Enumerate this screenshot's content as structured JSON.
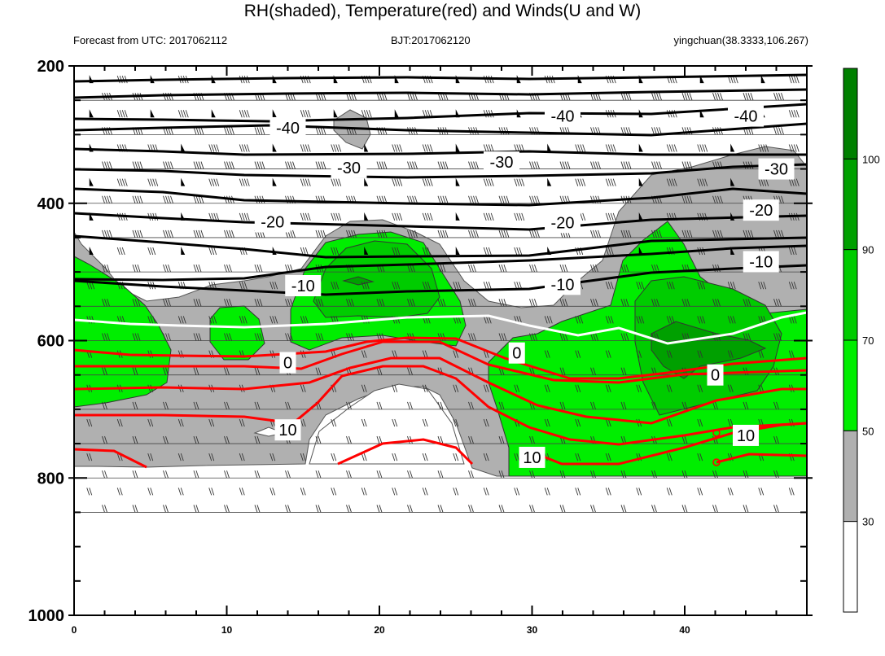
{
  "title": "RH(shaded), Temperature(red) and Winds(U and W)",
  "subtitle_left": "Forecast from UTC: 2017062112",
  "subtitle_center": "BJT:2017062120",
  "subtitle_right": "yingchuan(38.3333,106.267)",
  "colors": {
    "rh_30_50": "#b0b0b0",
    "rh_50_70": "#00ee00",
    "rh_70_90": "#00cc00",
    "rh_90_100": "#00a000",
    "rh_100": "#008000",
    "temp_positive": "#ff0000",
    "temp_zero": "#ffffff",
    "temp_negative": "#000000"
  },
  "chart_data": {
    "type": "heatmap",
    "title": "RH(shaded), Temperature(red) and Winds(U and W)",
    "x_ticks": [
      0,
      10,
      20,
      30,
      40
    ],
    "y_ticks": [
      200,
      400,
      600,
      800,
      1000
    ],
    "x_range": [
      0,
      48
    ],
    "y_range": [
      200,
      1000
    ],
    "y_reversed": true,
    "colorbar": {
      "levels": [
        30,
        50,
        70,
        90,
        100
      ],
      "colors": [
        "#ffffff",
        "#b0b0b0",
        "#00ee00",
        "#00cc00",
        "#00a000",
        "#008000"
      ]
    },
    "temperature_contour_labels": [
      {
        "value": "-40",
        "x": 14,
        "p": 290
      },
      {
        "value": "-40",
        "x": 32,
        "p": 273
      },
      {
        "value": "-40",
        "x": 44,
        "p": 273
      },
      {
        "value": "-30",
        "x": 18,
        "p": 348
      },
      {
        "value": "-30",
        "x": 28,
        "p": 340
      },
      {
        "value": "-30",
        "x": 46,
        "p": 350
      },
      {
        "value": "-20",
        "x": 13,
        "p": 427
      },
      {
        "value": "-20",
        "x": 32,
        "p": 428
      },
      {
        "value": "-20",
        "x": 45,
        "p": 410
      },
      {
        "value": "-10",
        "x": 15,
        "p": 520
      },
      {
        "value": "-10",
        "x": 32,
        "p": 518
      },
      {
        "value": "-10",
        "x": 45,
        "p": 485
      },
      {
        "value": "0",
        "x": 14,
        "p": 632
      },
      {
        "value": "0",
        "x": 29,
        "p": 618
      },
      {
        "value": "0",
        "x": 42,
        "p": 650
      },
      {
        "value": "10",
        "x": 14,
        "p": 730
      },
      {
        "value": "10",
        "x": 30,
        "p": 770
      },
      {
        "value": "10",
        "x": 44,
        "p": 738
      }
    ]
  }
}
